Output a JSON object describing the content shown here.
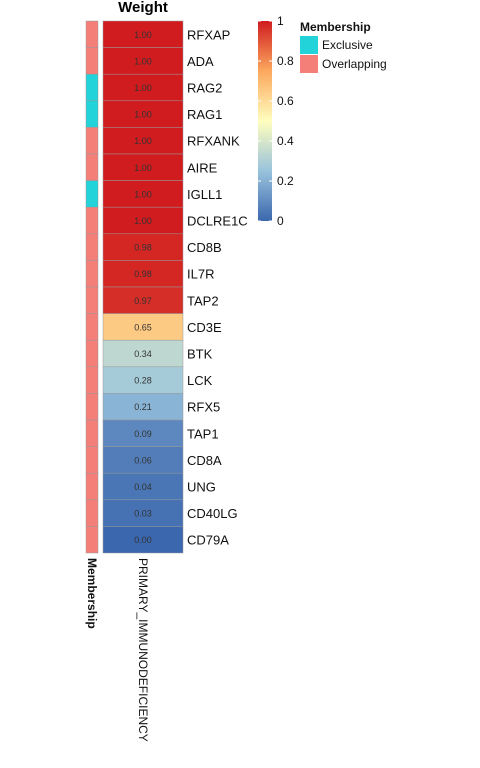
{
  "chart_data": {
    "type": "heatmap",
    "title": "Weight",
    "column": "PRIMARY_IMMUNODEFICIENCY",
    "side_bar_label": "Membership",
    "rows": [
      {
        "gene": "RFXAP",
        "weight": 1.0,
        "label": "1.00",
        "membership": "Overlapping"
      },
      {
        "gene": "ADA",
        "weight": 1.0,
        "label": "1.00",
        "membership": "Overlapping"
      },
      {
        "gene": "RAG2",
        "weight": 1.0,
        "label": "1.00",
        "membership": "Exclusive"
      },
      {
        "gene": "RAG1",
        "weight": 1.0,
        "label": "1.00",
        "membership": "Exclusive"
      },
      {
        "gene": "RFXANK",
        "weight": 1.0,
        "label": "1.00",
        "membership": "Overlapping"
      },
      {
        "gene": "AIRE",
        "weight": 1.0,
        "label": "1.00",
        "membership": "Overlapping"
      },
      {
        "gene": "IGLL1",
        "weight": 1.0,
        "label": "1.00",
        "membership": "Exclusive"
      },
      {
        "gene": "DCLRE1C",
        "weight": 1.0,
        "label": "1.00",
        "membership": "Overlapping"
      },
      {
        "gene": "CD8B",
        "weight": 0.98,
        "label": "0.98",
        "membership": "Overlapping"
      },
      {
        "gene": "IL7R",
        "weight": 0.98,
        "label": "0.98",
        "membership": "Overlapping"
      },
      {
        "gene": "TAP2",
        "weight": 0.97,
        "label": "0.97",
        "membership": "Overlapping"
      },
      {
        "gene": "CD3E",
        "weight": 0.65,
        "label": "0.65",
        "membership": "Overlapping"
      },
      {
        "gene": "BTK",
        "weight": 0.34,
        "label": "0.34",
        "membership": "Overlapping"
      },
      {
        "gene": "LCK",
        "weight": 0.28,
        "label": "0.28",
        "membership": "Overlapping"
      },
      {
        "gene": "RFX5",
        "weight": 0.21,
        "label": "0.21",
        "membership": "Overlapping"
      },
      {
        "gene": "TAP1",
        "weight": 0.09,
        "label": "0.09",
        "membership": "Overlapping"
      },
      {
        "gene": "CD8A",
        "weight": 0.06,
        "label": "0.06",
        "membership": "Overlapping"
      },
      {
        "gene": "UNG",
        "weight": 0.04,
        "label": "0.04",
        "membership": "Overlapping"
      },
      {
        "gene": "CD40LG",
        "weight": 0.03,
        "label": "0.03",
        "membership": "Overlapping"
      },
      {
        "gene": "CD79A",
        "weight": 0.0,
        "label": "0.00",
        "membership": "Overlapping"
      }
    ],
    "colorbar": {
      "ticks": [
        {
          "value": 1.0,
          "label": "1"
        },
        {
          "value": 0.8,
          "label": "0.8"
        },
        {
          "value": 0.6,
          "label": "0.6"
        },
        {
          "value": 0.4,
          "label": "0.4"
        },
        {
          "value": 0.2,
          "label": "0.2"
        },
        {
          "value": 0.0,
          "label": "0"
        }
      ],
      "range": [
        0,
        1
      ],
      "colors": [
        "#3b67ae",
        "#99c3dc",
        "#fffebe",
        "#fca85e",
        "#d01c1f"
      ]
    },
    "legend": {
      "title": "Membership",
      "placement": "top-right",
      "items": [
        {
          "name": "Exclusive",
          "color": "#22d3d9"
        },
        {
          "name": "Overlapping",
          "color": "#f47f79"
        }
      ]
    }
  }
}
